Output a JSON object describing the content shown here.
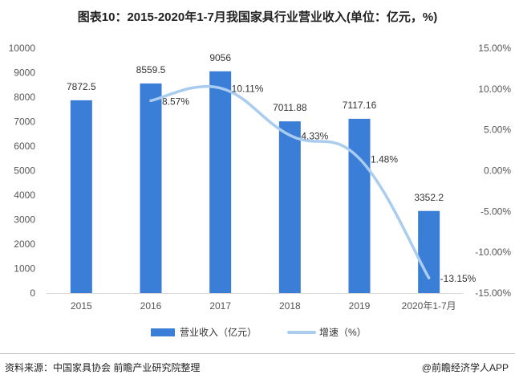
{
  "colors": {
    "bar": "#3b7ed8",
    "line": "#aaccee",
    "axis_text": "#555555",
    "label_text": "#333333",
    "axis_line": "#d9d9d9"
  },
  "footer": {
    "source": "资料来源：中国家具协会 前瞻产业研究院整理",
    "credit": "@前瞻经济学人APP"
  },
  "chart_data": {
    "type": "bar",
    "title": "图表10：2015-2020年1-7月我国家具行业营业收入(单位：亿元，%)",
    "categories": [
      "2015",
      "2016",
      "2017",
      "2018",
      "2019",
      "2020年1-7月"
    ],
    "series": [
      {
        "name": "营业收入（亿元）",
        "type": "bar",
        "axis": "left",
        "values": [
          7872.5,
          8559.5,
          9056,
          7011.88,
          7117.16,
          3352.2
        ],
        "labels": [
          "7872.5",
          "8559.5",
          "9056",
          "7011.88",
          "7117.16",
          "3352.2"
        ]
      },
      {
        "name": "增速（%）",
        "type": "line",
        "axis": "right",
        "values": [
          null,
          8.57,
          10.11,
          4.33,
          1.48,
          -13.15
        ],
        "labels": [
          "",
          "8.57%",
          "10.11%",
          "4.33%",
          "1.48%",
          "-13.15%"
        ]
      }
    ],
    "ylim_left": [
      0,
      10000
    ],
    "yticks_left": [
      "0",
      "1000",
      "2000",
      "3000",
      "4000",
      "5000",
      "6000",
      "7000",
      "8000",
      "9000",
      "10000"
    ],
    "ylim_right": [
      -15,
      15
    ],
    "yticks_right": [
      "-15.00%",
      "-10.00%",
      "-5.00%",
      "0.00%",
      "5.00%",
      "10.00%",
      "15.00%"
    ],
    "grid": false,
    "legend_position": "bottom"
  }
}
